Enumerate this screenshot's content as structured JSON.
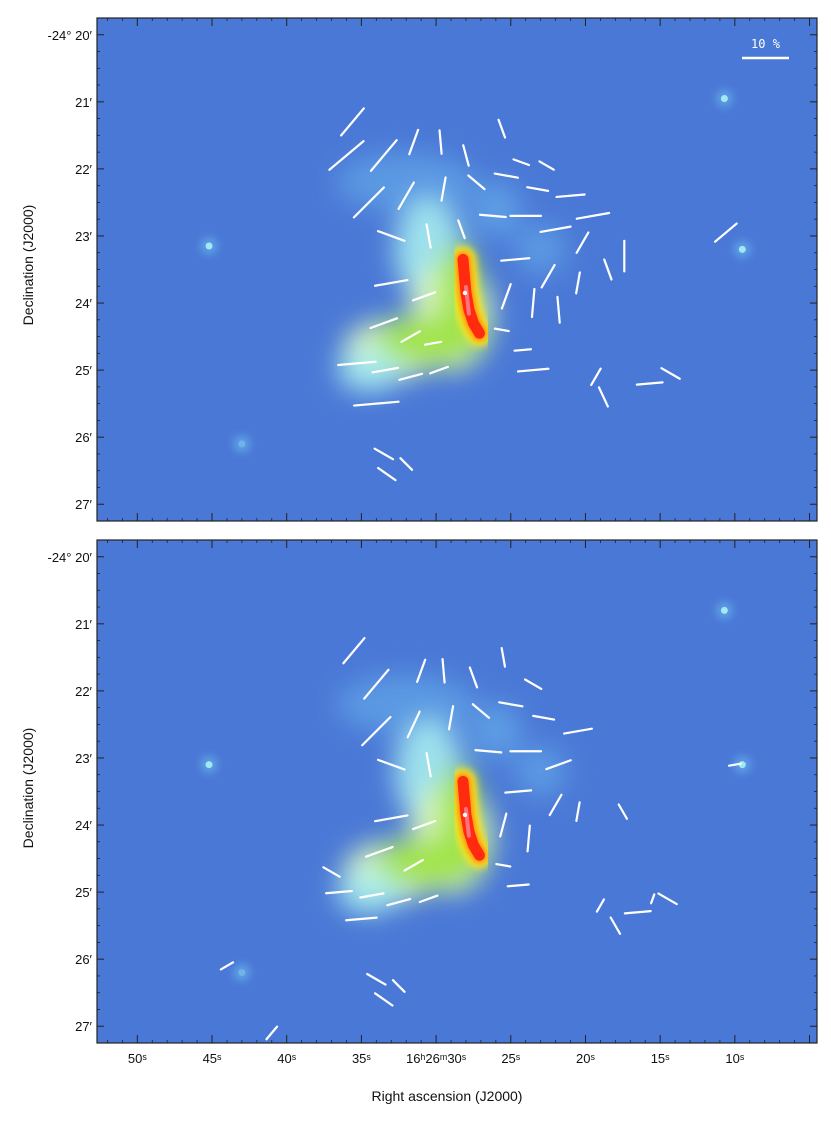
{
  "chart_data": [
    {
      "type": "polarization-vector-map",
      "panel": "top",
      "background_colormap": [
        "#4a78d6",
        "#62a6e8",
        "#a6ecf0",
        "#dff9c0",
        "#9be23c",
        "#ffe41a",
        "#ff9a10",
        "#ff2a10",
        "#ff7a8a",
        "#ffffff"
      ],
      "xlabel": "Right ascension (J2000)",
      "ylabel": "Declination (J2000)",
      "y_ticks": [
        "-24° 20′",
        "21′",
        "22′",
        "23′",
        "24′",
        "25′",
        "26′",
        "27′"
      ],
      "y_tick_values_arcmin": [
        20,
        21,
        22,
        23,
        24,
        25,
        26,
        27
      ],
      "x_ticks": [],
      "xlim_sec": [
        52.7,
        4.5
      ],
      "ylim_arcmin": [
        27.25,
        19.75
      ],
      "scale_bar_label": "10 %",
      "scale_bar_percent": 10,
      "sources_sec_arcmin": [
        [
          45.2,
          23.15
        ],
        [
          10.7,
          20.95
        ],
        [
          9.5,
          23.2
        ],
        [
          43.0,
          26.1
        ]
      ],
      "ridge_sec_arcmin": [
        [
          28.2,
          23.35
        ],
        [
          28.1,
          23.6
        ],
        [
          28.0,
          23.85
        ],
        [
          27.8,
          24.1
        ],
        [
          27.5,
          24.3
        ],
        [
          27.1,
          24.45
        ]
      ],
      "vectors": [
        {
          "ra": 35.6,
          "dec": 21.3,
          "pol": 7.5,
          "pa": 140
        },
        {
          "ra": 36.0,
          "dec": 21.8,
          "pol": 9.5,
          "pa": 130
        },
        {
          "ra": 33.5,
          "dec": 21.8,
          "pol": 8.5,
          "pa": 140
        },
        {
          "ra": 31.5,
          "dec": 21.6,
          "pol": 5.5,
          "pa": 160
        },
        {
          "ra": 29.7,
          "dec": 21.6,
          "pol": 5.0,
          "pa": 5
        },
        {
          "ra": 28.0,
          "dec": 21.8,
          "pol": 4.5,
          "pa": 15
        },
        {
          "ra": 25.6,
          "dec": 21.4,
          "pol": 4.0,
          "pa": 20
        },
        {
          "ra": 24.3,
          "dec": 21.9,
          "pol": 3.5,
          "pa": 70
        },
        {
          "ra": 22.6,
          "dec": 21.95,
          "pol": 3.5,
          "pa": 60
        },
        {
          "ra": 34.5,
          "dec": 22.5,
          "pol": 9.0,
          "pa": 135
        },
        {
          "ra": 32.0,
          "dec": 22.4,
          "pol": 6.5,
          "pa": 150
        },
        {
          "ra": 29.5,
          "dec": 22.3,
          "pol": 5.0,
          "pa": 170
        },
        {
          "ra": 27.3,
          "dec": 22.2,
          "pol": 4.5,
          "pa": 50
        },
        {
          "ra": 25.3,
          "dec": 22.1,
          "pol": 5.0,
          "pa": 80
        },
        {
          "ra": 23.2,
          "dec": 22.3,
          "pol": 4.5,
          "pa": 80
        },
        {
          "ra": 21.0,
          "dec": 22.4,
          "pol": 6.0,
          "pa": 95
        },
        {
          "ra": 19.5,
          "dec": 22.7,
          "pol": 7.0,
          "pa": 100
        },
        {
          "ra": 33.0,
          "dec": 23.0,
          "pol": 6.0,
          "pa": 70
        },
        {
          "ra": 30.5,
          "dec": 23.0,
          "pol": 5.0,
          "pa": 10
        },
        {
          "ra": 28.3,
          "dec": 22.9,
          "pol": 4.0,
          "pa": 20
        },
        {
          "ra": 26.2,
          "dec": 22.7,
          "pol": 5.5,
          "pa": 85
        },
        {
          "ra": 24.0,
          "dec": 22.7,
          "pol": 6.5,
          "pa": 90
        },
        {
          "ra": 22.0,
          "dec": 22.9,
          "pol": 6.5,
          "pa": 100
        },
        {
          "ra": 20.2,
          "dec": 23.1,
          "pol": 5.0,
          "pa": 150
        },
        {
          "ra": 24.7,
          "dec": 23.35,
          "pol": 6.0,
          "pa": 95
        },
        {
          "ra": 22.5,
          "dec": 23.6,
          "pol": 5.5,
          "pa": 150
        },
        {
          "ra": 20.5,
          "dec": 23.7,
          "pol": 4.5,
          "pa": 170
        },
        {
          "ra": 18.5,
          "dec": 23.5,
          "pol": 4.5,
          "pa": 20
        },
        {
          "ra": 17.4,
          "dec": 23.3,
          "pol": 6.5,
          "pa": 0
        },
        {
          "ra": 10.6,
          "dec": 22.95,
          "pol": 6.0,
          "pa": 130
        },
        {
          "ra": 33.0,
          "dec": 23.7,
          "pol": 7.0,
          "pa": 100
        },
        {
          "ra": 30.8,
          "dec": 23.9,
          "pol": 5.0,
          "pa": 110
        },
        {
          "ra": 25.3,
          "dec": 23.9,
          "pol": 5.5,
          "pa": 160
        },
        {
          "ra": 23.5,
          "dec": 24.0,
          "pol": 6.0,
          "pa": 175
        },
        {
          "ra": 21.8,
          "dec": 24.1,
          "pol": 5.5,
          "pa": 5
        },
        {
          "ra": 33.5,
          "dec": 24.3,
          "pol": 6.0,
          "pa": 110
        },
        {
          "ra": 31.7,
          "dec": 24.5,
          "pol": 4.5,
          "pa": 120
        },
        {
          "ra": 30.2,
          "dec": 24.6,
          "pol": 3.5,
          "pa": 100
        },
        {
          "ra": 25.6,
          "dec": 24.4,
          "pol": 3.0,
          "pa": 80
        },
        {
          "ra": 24.2,
          "dec": 24.7,
          "pol": 3.5,
          "pa": 95
        },
        {
          "ra": 35.3,
          "dec": 24.9,
          "pol": 8.0,
          "pa": 95
        },
        {
          "ra": 33.4,
          "dec": 25.0,
          "pol": 5.5,
          "pa": 100
        },
        {
          "ra": 31.7,
          "dec": 25.1,
          "pol": 5.0,
          "pa": 105
        },
        {
          "ra": 29.8,
          "dec": 25.0,
          "pol": 4.0,
          "pa": 110
        },
        {
          "ra": 23.5,
          "dec": 25.0,
          "pol": 6.5,
          "pa": 95
        },
        {
          "ra": 19.3,
          "dec": 25.1,
          "pol": 4.0,
          "pa": 150
        },
        {
          "ra": 18.8,
          "dec": 25.4,
          "pol": 4.5,
          "pa": 25
        },
        {
          "ra": 15.7,
          "dec": 25.2,
          "pol": 5.5,
          "pa": 95
        },
        {
          "ra": 14.3,
          "dec": 25.05,
          "pol": 4.5,
          "pa": 60
        },
        {
          "ra": 34.0,
          "dec": 25.5,
          "pol": 9.5,
          "pa": 95
        },
        {
          "ra": 33.5,
          "dec": 26.25,
          "pol": 4.5,
          "pa": 60
        },
        {
          "ra": 33.3,
          "dec": 26.55,
          "pol": 4.5,
          "pa": 55
        },
        {
          "ra": 32.0,
          "dec": 26.4,
          "pol": 3.5,
          "pa": 45
        }
      ]
    },
    {
      "type": "polarization-vector-map",
      "panel": "bottom",
      "background_colormap": [
        "#4a78d6",
        "#62a6e8",
        "#a6ecf0",
        "#dff9c0",
        "#9be23c",
        "#ffe41a",
        "#ff9a10",
        "#ff2a10",
        "#ff7a8a",
        "#ffffff"
      ],
      "xlabel": "Right ascension (J2000)",
      "ylabel": "Declination (J2000)",
      "y_ticks": [
        "-24° 20′",
        "21′",
        "22′",
        "23′",
        "24′",
        "25′",
        "26′",
        "27′"
      ],
      "y_tick_values_arcmin": [
        20,
        21,
        22,
        23,
        24,
        25,
        26,
        27
      ],
      "x_ticks": [
        "50ˢ",
        "45ˢ",
        "40ˢ",
        "35ˢ",
        "16ʰ26ᵐ30ˢ",
        "25ˢ",
        "20ˢ",
        "15ˢ",
        "10ˢ"
      ],
      "x_tick_values_sec": [
        50,
        45,
        40,
        35,
        30,
        25,
        20,
        15,
        10
      ],
      "xlim_sec": [
        52.7,
        4.5
      ],
      "ylim_arcmin": [
        27.25,
        19.75
      ],
      "sources_sec_arcmin": [
        [
          45.2,
          23.1
        ],
        [
          10.7,
          20.8
        ],
        [
          9.5,
          23.1
        ],
        [
          43.0,
          26.2
        ]
      ],
      "ridge_sec_arcmin": [
        [
          28.2,
          23.35
        ],
        [
          28.1,
          23.6
        ],
        [
          28.0,
          23.85
        ],
        [
          27.8,
          24.1
        ],
        [
          27.5,
          24.3
        ],
        [
          27.1,
          24.45
        ]
      ],
      "vectors": [
        {
          "ra": 35.5,
          "dec": 21.4,
          "pol": 7.0,
          "pa": 140
        },
        {
          "ra": 34.0,
          "dec": 21.9,
          "pol": 8.0,
          "pa": 140
        },
        {
          "ra": 31.0,
          "dec": 21.7,
          "pol": 5.0,
          "pa": 160
        },
        {
          "ra": 29.5,
          "dec": 21.7,
          "pol": 5.0,
          "pa": 5
        },
        {
          "ra": 27.5,
          "dec": 21.8,
          "pol": 4.5,
          "pa": 20
        },
        {
          "ra": 25.5,
          "dec": 21.5,
          "pol": 4.0,
          "pa": 10
        },
        {
          "ra": 23.5,
          "dec": 21.9,
          "pol": 4.0,
          "pa": 60
        },
        {
          "ra": 34.0,
          "dec": 22.6,
          "pol": 8.5,
          "pa": 135
        },
        {
          "ra": 31.5,
          "dec": 22.5,
          "pol": 6.0,
          "pa": 155
        },
        {
          "ra": 29.0,
          "dec": 22.4,
          "pol": 5.0,
          "pa": 170
        },
        {
          "ra": 27.0,
          "dec": 22.3,
          "pol": 4.5,
          "pa": 50
        },
        {
          "ra": 25.0,
          "dec": 22.2,
          "pol": 5.0,
          "pa": 80
        },
        {
          "ra": 22.8,
          "dec": 22.4,
          "pol": 4.5,
          "pa": 80
        },
        {
          "ra": 20.5,
          "dec": 22.6,
          "pol": 6.0,
          "pa": 100
        },
        {
          "ra": 33.0,
          "dec": 23.1,
          "pol": 6.0,
          "pa": 70
        },
        {
          "ra": 30.5,
          "dec": 23.1,
          "pol": 5.0,
          "pa": 10
        },
        {
          "ra": 26.5,
          "dec": 22.9,
          "pol": 5.5,
          "pa": 85
        },
        {
          "ra": 24.0,
          "dec": 22.9,
          "pol": 6.5,
          "pa": 90
        },
        {
          "ra": 21.8,
          "dec": 23.1,
          "pol": 5.5,
          "pa": 110
        },
        {
          "ra": 24.5,
          "dec": 23.5,
          "pol": 5.5,
          "pa": 95
        },
        {
          "ra": 22.0,
          "dec": 23.7,
          "pol": 5.0,
          "pa": 150
        },
        {
          "ra": 20.5,
          "dec": 23.8,
          "pol": 4.0,
          "pa": 170
        },
        {
          "ra": 17.5,
          "dec": 23.8,
          "pol": 3.5,
          "pa": 30
        },
        {
          "ra": 10.0,
          "dec": 23.1,
          "pol": 2.5,
          "pa": 100
        },
        {
          "ra": 33.0,
          "dec": 23.9,
          "pol": 7.0,
          "pa": 100
        },
        {
          "ra": 30.8,
          "dec": 24.0,
          "pol": 5.0,
          "pa": 110
        },
        {
          "ra": 25.5,
          "dec": 24.0,
          "pol": 5.0,
          "pa": 165
        },
        {
          "ra": 23.8,
          "dec": 24.2,
          "pol": 5.5,
          "pa": 175
        },
        {
          "ra": 33.8,
          "dec": 24.4,
          "pol": 6.0,
          "pa": 110
        },
        {
          "ra": 31.5,
          "dec": 24.6,
          "pol": 4.5,
          "pa": 120
        },
        {
          "ra": 25.5,
          "dec": 24.6,
          "pol": 3.0,
          "pa": 80
        },
        {
          "ra": 37.0,
          "dec": 24.7,
          "pol": 4.0,
          "pa": 60
        },
        {
          "ra": 36.5,
          "dec": 25.0,
          "pol": 5.5,
          "pa": 95
        },
        {
          "ra": 34.3,
          "dec": 25.05,
          "pol": 5.0,
          "pa": 100
        },
        {
          "ra": 32.5,
          "dec": 25.15,
          "pol": 5.0,
          "pa": 105
        },
        {
          "ra": 30.5,
          "dec": 25.1,
          "pol": 4.0,
          "pa": 110
        },
        {
          "ra": 24.5,
          "dec": 24.9,
          "pol": 4.5,
          "pa": 95
        },
        {
          "ra": 35.0,
          "dec": 25.4,
          "pol": 6.5,
          "pa": 95
        },
        {
          "ra": 19.0,
          "dec": 25.2,
          "pol": 3.0,
          "pa": 150
        },
        {
          "ra": 16.5,
          "dec": 25.3,
          "pol": 5.5,
          "pa": 95
        },
        {
          "ra": 14.5,
          "dec": 25.1,
          "pol": 4.5,
          "pa": 60
        },
        {
          "ra": 18.0,
          "dec": 25.5,
          "pol": 4.0,
          "pa": 30
        },
        {
          "ra": 15.5,
          "dec": 25.1,
          "pol": 2.0,
          "pa": 160
        },
        {
          "ra": 34.0,
          "dec": 26.3,
          "pol": 4.5,
          "pa": 60
        },
        {
          "ra": 33.5,
          "dec": 26.6,
          "pol": 4.5,
          "pa": 55
        },
        {
          "ra": 32.5,
          "dec": 26.4,
          "pol": 3.5,
          "pa": 45
        },
        {
          "ra": 44.0,
          "dec": 26.1,
          "pol": 3.0,
          "pa": 120
        },
        {
          "ra": 41.0,
          "dec": 27.1,
          "pol": 3.5,
          "pa": 140
        }
      ]
    }
  ]
}
